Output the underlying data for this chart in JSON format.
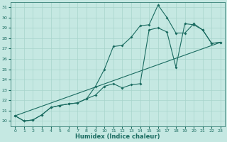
{
  "xlabel": "Humidex (Indice chaleur)",
  "bg_color": "#c5e8e2",
  "grid_color": "#a8d4cc",
  "line_color": "#1a6b60",
  "xlim": [
    -0.5,
    23.5
  ],
  "ylim": [
    19.5,
    31.5
  ],
  "yticks": [
    20,
    21,
    22,
    23,
    24,
    25,
    26,
    27,
    28,
    29,
    30,
    31
  ],
  "xticks": [
    0,
    1,
    2,
    3,
    4,
    5,
    6,
    7,
    8,
    9,
    10,
    11,
    12,
    13,
    14,
    15,
    16,
    17,
    18,
    19,
    20,
    21,
    22,
    23
  ],
  "line1_x": [
    0,
    1,
    2,
    3,
    4,
    5,
    6,
    7,
    8,
    9,
    10,
    11,
    12,
    13,
    14,
    15,
    16,
    17,
    18,
    19,
    20,
    21,
    22,
    23
  ],
  "line1_y": [
    20.5,
    20.0,
    20.1,
    20.6,
    21.3,
    21.5,
    21.65,
    21.75,
    22.15,
    23.35,
    25.0,
    27.2,
    27.3,
    28.1,
    29.2,
    29.3,
    31.2,
    30.0,
    28.5,
    28.5,
    29.4,
    28.8,
    27.5,
    27.6
  ],
  "line2_x": [
    0,
    1,
    2,
    3,
    4,
    5,
    6,
    7,
    8,
    9,
    10,
    11,
    12,
    13,
    14,
    15,
    16,
    17,
    18,
    19,
    20,
    21,
    22,
    23
  ],
  "line2_y": [
    20.5,
    20.0,
    20.1,
    20.6,
    21.3,
    21.5,
    21.65,
    21.75,
    22.15,
    22.5,
    23.35,
    23.6,
    23.2,
    23.5,
    23.6,
    28.8,
    29.0,
    28.6,
    25.2,
    29.4,
    29.3,
    28.8,
    27.5,
    27.6
  ],
  "line3_x": [
    0,
    23
  ],
  "line3_y": [
    20.5,
    27.6
  ]
}
